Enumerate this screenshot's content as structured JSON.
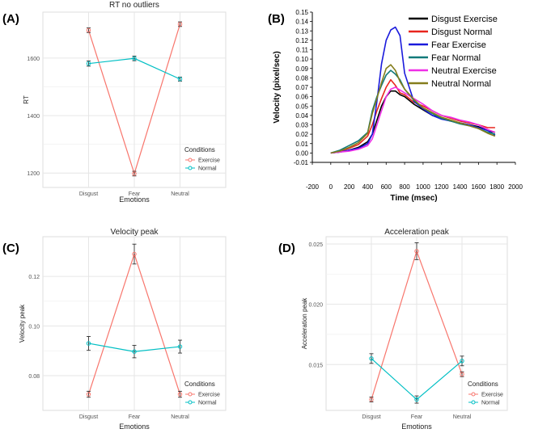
{
  "chart_data": [
    {
      "panel_label": "(A)",
      "type": "line",
      "title": "RT no outliers",
      "xlabel": "Emotions",
      "ylabel": "RT",
      "categories": [
        "Disgust",
        "Fear",
        "Neutral"
      ],
      "ylim": [
        1150,
        1760
      ],
      "yticks": [
        1200,
        1400,
        1600
      ],
      "ytick_labels": [
        "1200",
        "1400",
        "1600"
      ],
      "series": [
        {
          "name": "Exercise",
          "color": "#f8766d",
          "values": [
            1697,
            1198,
            1718
          ],
          "err": [
            8,
            8,
            8
          ]
        },
        {
          "name": "Normal",
          "color": "#00bfc4",
          "values": [
            1581,
            1599,
            1527
          ],
          "err": [
            9,
            8,
            7
          ]
        }
      ],
      "legend": {
        "title": "Conditions",
        "position": "bottom-right"
      },
      "grid": true
    },
    {
      "panel_label": "(B)",
      "type": "line",
      "title": "",
      "xlabel": "Time (msec)",
      "ylabel": "Velocity (pixel/sec)",
      "xlim": [
        -200,
        2000
      ],
      "ylim": [
        -0.01,
        0.15
      ],
      "xticks": [
        -200,
        0,
        200,
        400,
        600,
        800,
        1000,
        1200,
        1400,
        1600,
        1800,
        2000
      ],
      "xtick_labels": [
        "-200",
        "0",
        "200",
        "400",
        "600",
        "800",
        "1000",
        "1200",
        "1400",
        "1600",
        "1800",
        "2000"
      ],
      "yticks": [
        -0.01,
        0,
        0.01,
        0.02,
        0.03,
        0.04,
        0.05,
        0.06,
        0.07,
        0.08,
        0.09,
        0.1,
        0.11,
        0.12,
        0.13,
        0.14,
        0.15
      ],
      "ytick_labels": [
        "-0.01",
        "0.00",
        "0.01",
        "0.02",
        "0.03",
        "0.04",
        "0.05",
        "0.06",
        "0.07",
        "0.08",
        "0.09",
        "0.10",
        "0.11",
        "0.12",
        "0.13",
        "0.14",
        "0.15"
      ],
      "x": [
        0,
        100,
        200,
        300,
        400,
        450,
        500,
        550,
        600,
        650,
        700,
        750,
        800,
        900,
        1000,
        1100,
        1200,
        1300,
        1400,
        1500,
        1600,
        1700,
        1780
      ],
      "series": [
        {
          "name": "Disgust Exercise",
          "color": "#000000",
          "values": [
            0,
            0.001,
            0.003,
            0.006,
            0.012,
            0.02,
            0.035,
            0.05,
            0.06,
            0.066,
            0.066,
            0.062,
            0.06,
            0.052,
            0.046,
            0.04,
            0.037,
            0.034,
            0.032,
            0.03,
            0.028,
            0.024,
            0.022
          ]
        },
        {
          "name": "Disgust Normal",
          "color": "#e8251e",
          "values": [
            0,
            0.002,
            0.005,
            0.009,
            0.018,
            0.03,
            0.045,
            0.058,
            0.07,
            0.078,
            0.072,
            0.064,
            0.062,
            0.054,
            0.05,
            0.045,
            0.04,
            0.037,
            0.034,
            0.032,
            0.03,
            0.027,
            0.027
          ]
        },
        {
          "name": "Fear Exercise",
          "color": "#1a1adc",
          "values": [
            0,
            0.001,
            0.003,
            0.005,
            0.01,
            0.02,
            0.055,
            0.095,
            0.12,
            0.131,
            0.134,
            0.125,
            0.085,
            0.055,
            0.047,
            0.04,
            0.036,
            0.034,
            0.032,
            0.03,
            0.027,
            0.024,
            0.019
          ]
        },
        {
          "name": "Fear Normal",
          "color": "#127a7a",
          "values": [
            0,
            0.003,
            0.008,
            0.013,
            0.022,
            0.045,
            0.06,
            0.072,
            0.083,
            0.088,
            0.084,
            0.078,
            0.068,
            0.056,
            0.048,
            0.042,
            0.037,
            0.034,
            0.031,
            0.029,
            0.026,
            0.022,
            0.02
          ]
        },
        {
          "name": "Neutral Exercise",
          "color": "#ef2fe6",
          "values": [
            0,
            0.001,
            0.002,
            0.004,
            0.008,
            0.015,
            0.03,
            0.045,
            0.06,
            0.068,
            0.07,
            0.067,
            0.064,
            0.058,
            0.052,
            0.045,
            0.04,
            0.038,
            0.035,
            0.033,
            0.03,
            0.025,
            0.022
          ]
        },
        {
          "name": "Neutral Normal",
          "color": "#847d1c",
          "values": [
            0,
            0.002,
            0.006,
            0.011,
            0.021,
            0.042,
            0.058,
            0.075,
            0.09,
            0.094,
            0.088,
            0.076,
            0.068,
            0.057,
            0.048,
            0.043,
            0.038,
            0.035,
            0.032,
            0.029,
            0.026,
            0.021,
            0.018
          ]
        }
      ],
      "legend": {
        "position": "top-right"
      },
      "grid": false
    },
    {
      "panel_label": "(C)",
      "type": "line",
      "title": "Velocity peak",
      "xlabel": "Emotions",
      "ylabel": "Velocity peak",
      "categories": [
        "Disgust",
        "Fear",
        "Neutral"
      ],
      "ylim": [
        0.066,
        0.136
      ],
      "yticks": [
        0.08,
        0.1,
        0.12
      ],
      "ytick_labels": [
        "0.08",
        "0.10",
        "0.12"
      ],
      "series": [
        {
          "name": "Exercise",
          "color": "#f8766d",
          "values": [
            0.0725,
            0.129,
            0.0725
          ],
          "err": [
            0.0012,
            0.004,
            0.0012
          ]
        },
        {
          "name": "Normal",
          "color": "#00bfc4",
          "values": [
            0.093,
            0.0897,
            0.0917
          ],
          "err": [
            0.0028,
            0.0025,
            0.0026
          ]
        }
      ],
      "legend": {
        "title": "Conditions",
        "position": "bottom-right"
      },
      "grid": true
    },
    {
      "panel_label": "(D)",
      "type": "line",
      "title": "Acceleration peak",
      "xlabel": "Emotions",
      "ylabel": "Acceleration peak",
      "categories": [
        "Disgust",
        "Fear",
        "Neutral"
      ],
      "ylim": [
        0.0112,
        0.0256
      ],
      "yticks": [
        0.015,
        0.02,
        0.025
      ],
      "ytick_labels": [
        "0.015",
        "0.020",
        "0.025"
      ],
      "series": [
        {
          "name": "Exercise",
          "color": "#f8766d",
          "values": [
            0.0121,
            0.0244,
            0.0142
          ],
          "err": [
            0.0002,
            0.0007,
            0.0002
          ]
        },
        {
          "name": "Normal",
          "color": "#00bfc4",
          "values": [
            0.0155,
            0.0121,
            0.0153
          ],
          "err": [
            0.0004,
            0.0003,
            0.0004
          ]
        }
      ],
      "legend": {
        "title": "Conditions",
        "position": "bottom-right"
      },
      "grid": true
    }
  ]
}
